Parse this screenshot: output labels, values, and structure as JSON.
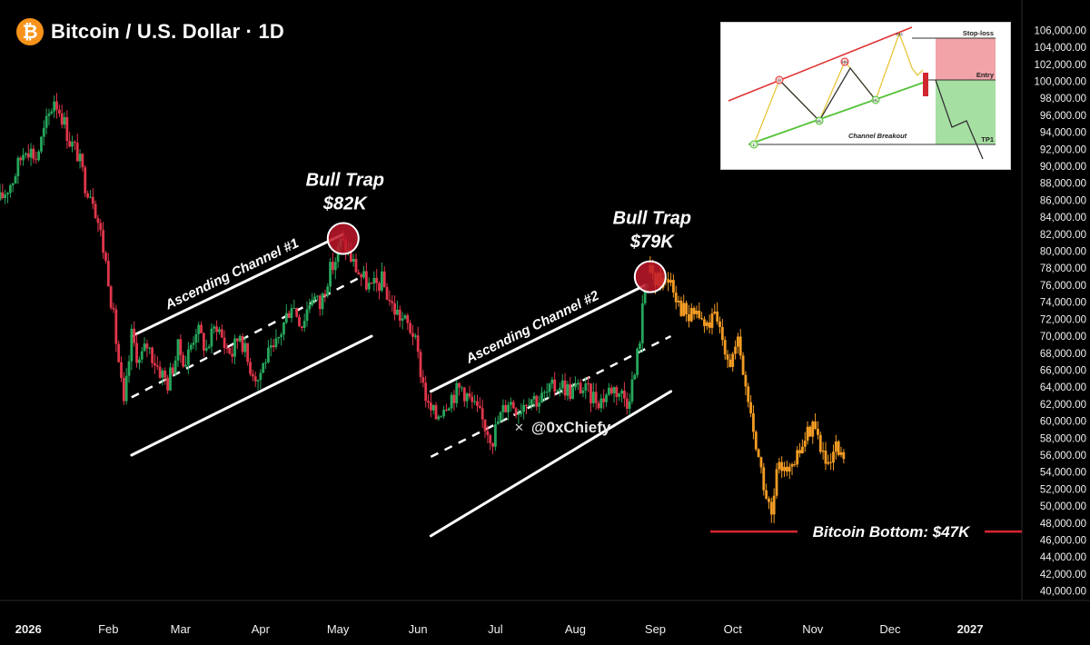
{
  "header": {
    "logo_glyph": "₿",
    "logo_icon": "bitcoin-icon",
    "title": "Bitcoin / U.S. Dollar · 1D"
  },
  "watermark": {
    "icon": "x-logo-icon",
    "handle": "@0xChiefy"
  },
  "colors": {
    "background": "#000000",
    "up_candle": "#26a65b",
    "down_candle": "#e0364a",
    "projection": "#f39c24",
    "bitcoin_orange": "#f7931a",
    "annotation_white": "#ffffff",
    "bottom_line": "#d9262f",
    "trap_circle": "#c0182a"
  },
  "chart_data": {
    "type": "candlestick",
    "title": "Bitcoin / U.S. Dollar · 1D",
    "y_axis": {
      "position": "right",
      "ylim": [
        39000,
        107000
      ],
      "ticks": [
        106000,
        104000,
        102000,
        100000,
        98000,
        96000,
        94000,
        92000,
        90000,
        88000,
        86000,
        84000,
        82000,
        80000,
        78000,
        76000,
        74000,
        72000,
        70000,
        68000,
        66000,
        64000,
        62000,
        60000,
        58000,
        56000,
        54000,
        52000,
        50000,
        48000,
        46000,
        44000,
        42000,
        40000
      ],
      "tick_labels": [
        "106,000.00",
        "104,000.00",
        "102,000.00",
        "100,000.00",
        "98,000.00",
        "96,000.00",
        "94,000.00",
        "92,000.00",
        "90,000.00",
        "88,000.00",
        "86,000.00",
        "84,000.00",
        "82,000.00",
        "80,000.00",
        "78,000.00",
        "76,000.00",
        "74,000.00",
        "72,000.00",
        "70,000.00",
        "68,000.00",
        "66,000.00",
        "64,000.00",
        "62,000.00",
        "60,000.00",
        "58,000.00",
        "56,000.00",
        "54,000.00",
        "52,000.00",
        "50,000.00",
        "48,000.00",
        "46,000.00",
        "44,000.00",
        "42,000.00",
        "40,000.00"
      ]
    },
    "x_axis": {
      "unit": "date",
      "range": [
        "2025-12-21",
        "2027-01-20"
      ],
      "ticks": [
        {
          "date": "2026-01-01",
          "label": "2026",
          "bold": true
        },
        {
          "date": "2026-02-01",
          "label": "Feb"
        },
        {
          "date": "2026-03-01",
          "label": "Mar"
        },
        {
          "date": "2026-04-01",
          "label": "Apr"
        },
        {
          "date": "2026-05-01",
          "label": "May"
        },
        {
          "date": "2026-06-01",
          "label": "Jun"
        },
        {
          "date": "2026-07-01",
          "label": "Jul"
        },
        {
          "date": "2026-08-01",
          "label": "Aug"
        },
        {
          "date": "2026-09-01",
          "label": "Sep"
        },
        {
          "date": "2026-10-01",
          "label": "Oct"
        },
        {
          "date": "2026-11-01",
          "label": "Nov"
        },
        {
          "date": "2026-12-01",
          "label": "Dec"
        },
        {
          "date": "2027-01-01",
          "label": "2027",
          "bold": true
        }
      ]
    },
    "series": [
      {
        "style": "candles",
        "points": [
          [
            "2025-12-21",
            86000
          ],
          [
            "2025-12-26",
            88500
          ],
          [
            "2025-12-31",
            92500
          ],
          [
            "2026-01-04",
            91000
          ],
          [
            "2026-01-08",
            95000
          ],
          [
            "2026-01-11",
            98000
          ],
          [
            "2026-01-14",
            96000
          ],
          [
            "2026-01-17",
            93000
          ],
          [
            "2026-01-20",
            91500
          ],
          [
            "2026-01-23",
            88000
          ],
          [
            "2026-01-26",
            86500
          ],
          [
            "2026-01-29",
            82000
          ],
          [
            "2026-02-01",
            77000
          ],
          [
            "2026-02-03",
            72000
          ],
          [
            "2026-02-05",
            67000
          ],
          [
            "2026-02-07",
            61500
          ],
          [
            "2026-02-10",
            70000
          ],
          [
            "2026-02-13",
            67000
          ],
          [
            "2026-02-16",
            69000
          ],
          [
            "2026-02-20",
            66500
          ],
          [
            "2026-02-24",
            64500
          ],
          [
            "2026-02-28",
            68500
          ],
          [
            "2026-03-03",
            67000
          ],
          [
            "2026-03-07",
            71000
          ],
          [
            "2026-03-11",
            68500
          ],
          [
            "2026-03-15",
            71500
          ],
          [
            "2026-03-18",
            69000
          ],
          [
            "2026-03-21",
            68000
          ],
          [
            "2026-03-24",
            70500
          ],
          [
            "2026-03-27",
            67000
          ],
          [
            "2026-03-31",
            65000
          ],
          [
            "2026-04-03",
            67500
          ],
          [
            "2026-04-06",
            68000
          ],
          [
            "2026-04-10",
            71500
          ],
          [
            "2026-04-13",
            74000
          ],
          [
            "2026-04-17",
            71500
          ],
          [
            "2026-04-21",
            75000
          ],
          [
            "2026-04-24",
            73500
          ],
          [
            "2026-04-27",
            77000
          ],
          [
            "2026-04-30",
            79000
          ],
          [
            "2026-05-02",
            81000
          ],
          [
            "2026-05-04",
            80500
          ],
          [
            "2026-05-07",
            78500
          ],
          [
            "2026-05-10",
            77000
          ],
          [
            "2026-05-14",
            75500
          ],
          [
            "2026-05-18",
            76500
          ],
          [
            "2026-05-22",
            73500
          ],
          [
            "2026-05-26",
            72000
          ],
          [
            "2026-05-30",
            70500
          ],
          [
            "2026-06-02",
            66000
          ],
          [
            "2026-06-05",
            61500
          ],
          [
            "2026-06-08",
            60500
          ],
          [
            "2026-06-11",
            62000
          ],
          [
            "2026-06-14",
            63000
          ],
          [
            "2026-06-18",
            64000
          ],
          [
            "2026-06-22",
            62000
          ],
          [
            "2026-06-26",
            60000
          ],
          [
            "2026-06-30",
            58000
          ],
          [
            "2026-07-02",
            60000
          ],
          [
            "2026-07-06",
            62500
          ],
          [
            "2026-07-10",
            61500
          ],
          [
            "2026-07-14",
            63000
          ],
          [
            "2026-07-18",
            62500
          ],
          [
            "2026-07-22",
            63500
          ],
          [
            "2026-07-26",
            64500
          ],
          [
            "2026-07-30",
            63500
          ],
          [
            "2026-08-03",
            64000
          ],
          [
            "2026-08-07",
            63000
          ],
          [
            "2026-08-11",
            62500
          ],
          [
            "2026-08-15",
            64000
          ],
          [
            "2026-08-18",
            63500
          ],
          [
            "2026-08-21",
            62500
          ],
          [
            "2026-08-24",
            65500
          ],
          [
            "2026-08-26",
            70000
          ],
          [
            "2026-08-28",
            76000
          ],
          [
            "2026-08-30",
            77500
          ]
        ]
      },
      {
        "style": "projection",
        "points": [
          [
            "2026-08-30",
            77500
          ],
          [
            "2026-09-03",
            76500
          ],
          [
            "2026-09-07",
            77000
          ],
          [
            "2026-09-10",
            74000
          ],
          [
            "2026-09-14",
            72000
          ],
          [
            "2026-09-17",
            73000
          ],
          [
            "2026-09-20",
            71000
          ],
          [
            "2026-09-24",
            72000
          ],
          [
            "2026-09-27",
            70000
          ],
          [
            "2026-09-30",
            67000
          ],
          [
            "2026-10-03",
            69000
          ],
          [
            "2026-10-06",
            64000
          ],
          [
            "2026-10-09",
            59000
          ],
          [
            "2026-10-12",
            54000
          ],
          [
            "2026-10-14",
            51000
          ],
          [
            "2026-10-16",
            48500
          ],
          [
            "2026-10-18",
            53500
          ],
          [
            "2026-10-21",
            55500
          ],
          [
            "2026-10-24",
            54000
          ],
          [
            "2026-10-27",
            56500
          ],
          [
            "2026-10-30",
            58500
          ],
          [
            "2026-11-01",
            60000
          ],
          [
            "2026-11-03",
            58000
          ],
          [
            "2026-11-05",
            56000
          ],
          [
            "2026-11-07",
            54000
          ],
          [
            "2026-11-10",
            56500
          ],
          [
            "2026-11-12",
            55500
          ],
          [
            "2026-11-14",
            56000
          ]
        ]
      }
    ],
    "annotations": [
      {
        "type": "channel",
        "label": "Ascending Channel #1",
        "upper": [
          [
            "2026-02-10",
            70000
          ],
          [
            "2026-05-03",
            82000
          ]
        ],
        "mid": [
          [
            "2026-02-10",
            62800
          ],
          [
            "2026-05-10",
            77000
          ]
        ],
        "lower": [
          [
            "2026-02-10",
            56000
          ],
          [
            "2026-05-14",
            70000
          ]
        ]
      },
      {
        "type": "channel",
        "label": "Ascending Channel #2",
        "upper": [
          [
            "2026-06-06",
            63500
          ],
          [
            "2026-08-28",
            76000
          ]
        ],
        "mid": [
          [
            "2026-06-06",
            55800
          ],
          [
            "2026-09-07",
            70000
          ]
        ],
        "lower": [
          [
            "2026-06-06",
            46500
          ],
          [
            "2026-09-07",
            63500
          ]
        ]
      },
      {
        "type": "bull_trap",
        "line1": "Bull Trap",
        "line2": "$82K",
        "at": [
          "2026-05-03",
          81500
        ]
      },
      {
        "type": "bull_trap",
        "line1": "Bull Trap",
        "line2": "$79K",
        "at": [
          "2026-08-30",
          77000
        ]
      },
      {
        "type": "bottom",
        "label": "Bitcoin Bottom: $47K",
        "value": 47000
      }
    ],
    "grid": false,
    "legend": "none"
  },
  "inset_diagram": {
    "labels": {
      "stop_loss": "Stop-loss",
      "entry": "Entry",
      "tp1": "TP1",
      "breakout": "Channel Breakout",
      "hh": "HH",
      "hl": "HL",
      "lh": "LH",
      "l": "L",
      "h": "H"
    }
  }
}
